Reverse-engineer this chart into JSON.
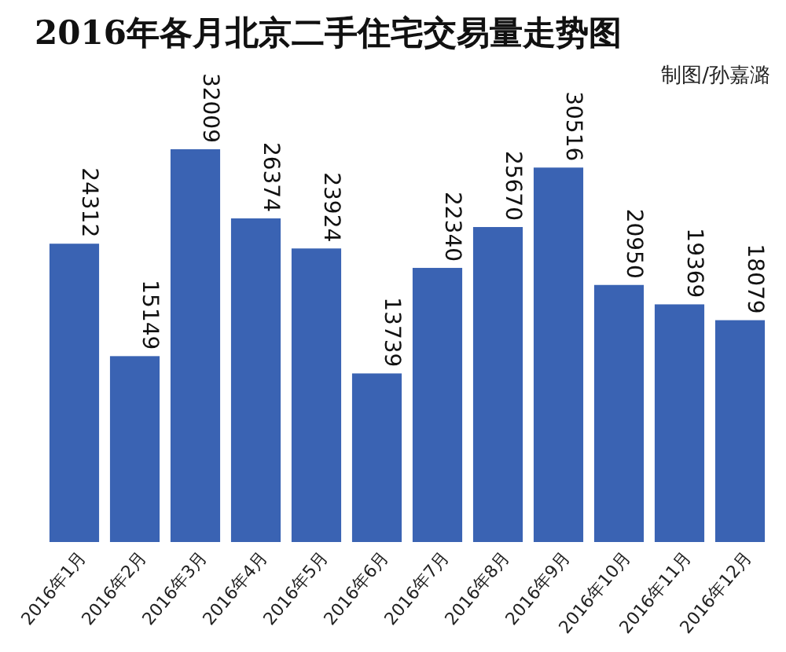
{
  "chart_data": {
    "type": "bar",
    "title": "2016年各月北京二手住宅交易量走势图",
    "annotations": [
      "制图/孙嘉潞"
    ],
    "categories": [
      "2016年1月",
      "2016年2月",
      "2016年3月",
      "2016年4月",
      "2016年5月",
      "2016年6月",
      "2016年7月",
      "2016年8月",
      "2016年9月",
      "2016年10月",
      "2016年11月",
      "2016年12月"
    ],
    "values": [
      24312,
      15149,
      32009,
      26374,
      23924,
      13739,
      22340,
      25670,
      30516,
      20950,
      19369,
      18079
    ],
    "color": "#3a63b3",
    "data_labels": true
  }
}
